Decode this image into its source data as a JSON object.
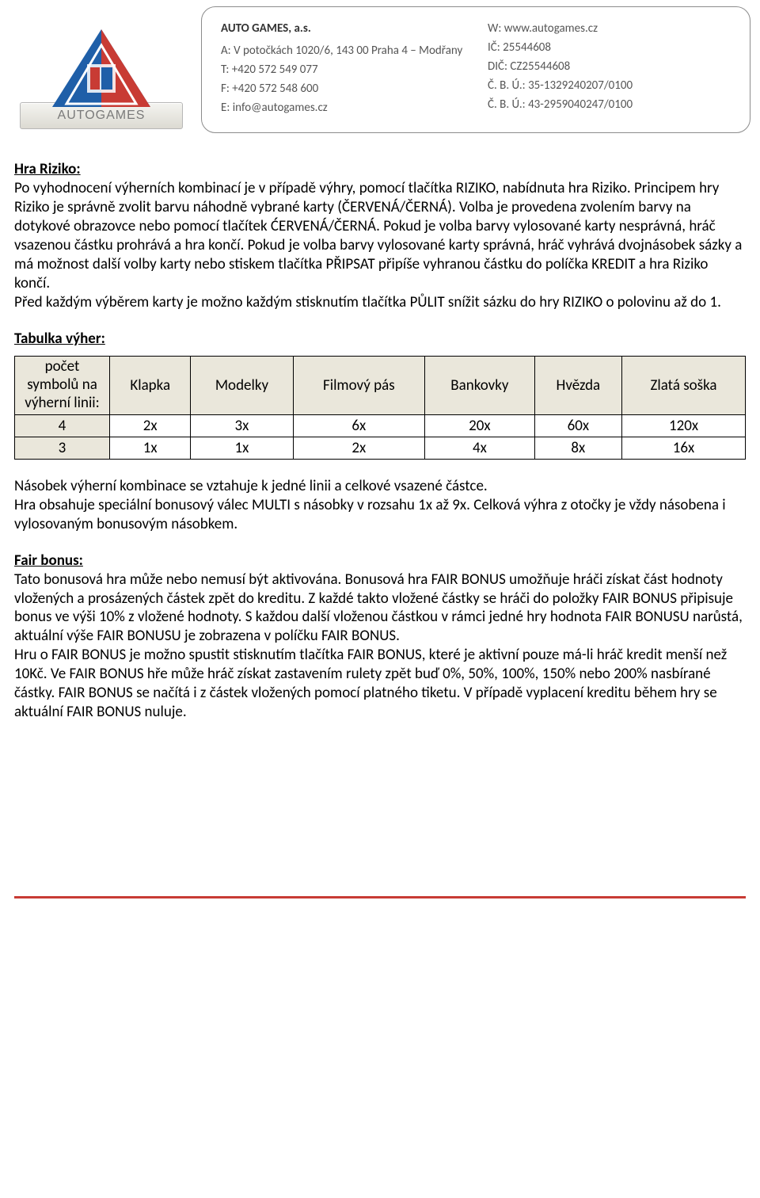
{
  "header": {
    "logo_text": "AUTOGAMES",
    "company": "AUTO GAMES, a.s.",
    "col1": {
      "address": "A: V potočkách 1020/6, 143 00 Praha 4 – Modřany",
      "tel": "T: +420 572 549 077",
      "fax": "F: +420 572 548 600",
      "email": "E: info@autogames.cz"
    },
    "col2": {
      "web": "W: www.autogames.cz",
      "ic": "IČ: 25544608",
      "dic": "DIČ: CZ25544608",
      "acc1": "Č. B. Ú.: 35-1329240207/0100",
      "acc2": "Č. B. Ú.: 43-2959040247/0100"
    },
    "colors": {
      "logo_blue": "#1f5fa8",
      "logo_red": "#c83b34",
      "banner_text": "#7a7a7a"
    }
  },
  "sections": {
    "riziko_title": "Hra Riziko:",
    "riziko_body": "Po vyhodnocení výherních kombinací je v případě výhry, pomocí tlačítka RIZIKO, nabídnuta hra Riziko. Principem hry Riziko je správně zvolit barvu náhodně vybrané karty (ČERVENÁ/ČERNÁ). Volba je provedena zvolením barvy na dotykové obrazovce nebo pomocí tlačítek ĆERVENÁ/ČERNÁ. Pokud je volba barvy vylosované karty nesprávná, hráč vsazenou částku prohrává a hra končí. Pokud je volba barvy vylosované karty správná, hráč vyhrává dvojnásobek sázky a má možnost další volby karty nebo stiskem tlačítka PŘIPSAT připíše vyhranou částku do políčka KREDIT a hra Riziko končí.",
    "riziko_body2": "Před každým výběrem karty je možno každým stisknutím tlačítka PŮLIT snížit sázku do hry RIZIKO o polovinu až do 1.",
    "table_title": "Tabulka výher:",
    "below_table_p1": "Násobek výherní kombinace se vztahuje k jedné linii a celkové vsazené částce.",
    "below_table_p2": "Hra obsahuje speciální bonusový válec MULTI s násobky v rozsahu 1x až 9x. Celková výhra z otočky je vždy násobena i vylosovaným bonusovým násobkem.",
    "fair_title": "Fair bonus:",
    "fair_p1": "Tato bonusová hra může nebo nemusí být aktivována. Bonusová hra FAIR BONUS umožňuje hráči získat část hodnoty vložených a prosázených částek zpět do kreditu. Z každé takto vložené částky se hráči do položky FAIR BONUS připisuje bonus ve výši 10% z vložené hodnoty. S každou další vloženou částkou v rámci jedné hry hodnota FAIR BONUSU narůstá, aktuální výše FAIR BONUSU je zobrazena v políčku FAIR BONUS.",
    "fair_p2": "Hru o FAIR BONUS je možno spustit stisknutím tlačítka FAIR BONUS, které je aktivní pouze má-li hráč kredit menší než 10Kč. Ve FAIR BONUS hře může hráč získat zastavením rulety zpět buď 0%, 50%, 100%, 150% nebo 200% nasbírané částky. FAIR BONUS se načítá i z částek vložených pomocí platného tiketu. V případě vyplacení kreditu během hry se aktuální FAIR BONUS nuluje."
  },
  "win_table": {
    "header_bg": "#eae7db",
    "border_color": "#000000",
    "columns": [
      "počet symbolů na výherní linii:",
      "Klapka",
      "Modelky",
      "Filmový pás",
      "Bankovky",
      "Hvězda",
      "Zlatá soška"
    ],
    "rows": [
      {
        "label": "4",
        "cells": [
          "2x",
          "3x",
          "6x",
          "20x",
          "60x",
          "120x"
        ]
      },
      {
        "label": "3",
        "cells": [
          "1x",
          "1x",
          "2x",
          "4x",
          "8x",
          "16x"
        ]
      }
    ]
  }
}
